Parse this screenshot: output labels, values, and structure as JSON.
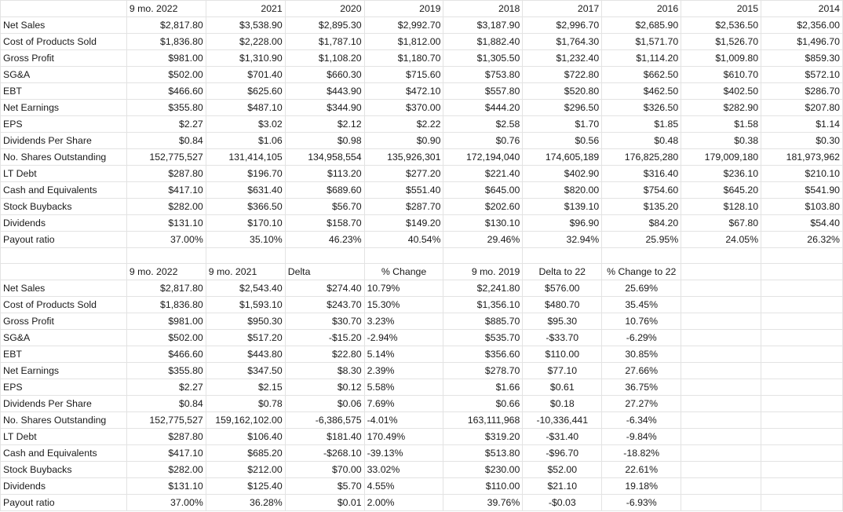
{
  "table1": {
    "headers": [
      "",
      "9 mo. 2022",
      "2021",
      "2020",
      "2019",
      "2018",
      "2017",
      "2016",
      "2015",
      "2014"
    ],
    "rows": [
      [
        "Net Sales",
        "$2,817.80",
        "$3,538.90",
        "$2,895.30",
        "$2,992.70",
        "$3,187.90",
        "$2,996.70",
        "$2,685.90",
        "$2,536.50",
        "$2,356.00"
      ],
      [
        "Cost of Products Sold",
        "$1,836.80",
        "$2,228.00",
        "$1,787.10",
        "$1,812.00",
        "$1,882.40",
        "$1,764.30",
        "$1,571.70",
        "$1,526.70",
        "$1,496.70"
      ],
      [
        "Gross Profit",
        "$981.00",
        "$1,310.90",
        "$1,108.20",
        "$1,180.70",
        "$1,305.50",
        "$1,232.40",
        "$1,114.20",
        "$1,009.80",
        "$859.30"
      ],
      [
        "SG&A",
        "$502.00",
        "$701.40",
        "$660.30",
        "$715.60",
        "$753.80",
        "$722.80",
        "$662.50",
        "$610.70",
        "$572.10"
      ],
      [
        "EBT",
        "$466.60",
        "$625.60",
        "$443.90",
        "$472.10",
        "$557.80",
        "$520.80",
        "$462.50",
        "$402.50",
        "$286.70"
      ],
      [
        "Net Earnings",
        "$355.80",
        "$487.10",
        "$344.90",
        "$370.00",
        "$444.20",
        "$296.50",
        "$326.50",
        "$282.90",
        "$207.80"
      ],
      [
        "EPS",
        "$2.27",
        "$3.02",
        "$2.12",
        "$2.22",
        "$2.58",
        "$1.70",
        "$1.85",
        "$1.58",
        "$1.14"
      ],
      [
        "Dividends Per Share",
        "$0.84",
        "$1.06",
        "$0.98",
        "$0.90",
        "$0.76",
        "$0.56",
        "$0.48",
        "$0.38",
        "$0.30"
      ],
      [
        "No. Shares Outstanding",
        "152,775,527",
        "131,414,105",
        "134,958,554",
        "135,926,301",
        "172,194,040",
        "174,605,189",
        "176,825,280",
        "179,009,180",
        "181,973,962"
      ],
      [
        "LT Debt",
        "$287.80",
        "$196.70",
        "$113.20",
        "$277.20",
        "$221.40",
        "$402.90",
        "$316.40",
        "$236.10",
        "$210.10"
      ],
      [
        "Cash and Equivalents",
        "$417.10",
        "$631.40",
        "$689.60",
        "$551.40",
        "$645.00",
        "$820.00",
        "$754.60",
        "$645.20",
        "$541.90"
      ],
      [
        "Stock Buybacks",
        "$282.00",
        "$366.50",
        "$56.70",
        "$287.70",
        "$202.60",
        "$139.10",
        "$135.20",
        "$128.10",
        "$103.80"
      ],
      [
        "Dividends",
        "$131.10",
        "$170.10",
        "$158.70",
        "$149.20",
        "$130.10",
        "$96.90",
        "$84.20",
        "$67.80",
        "$54.40"
      ],
      [
        "Payout ratio",
        "37.00%",
        "35.10%",
        "46.23%",
        "40.54%",
        "29.46%",
        "32.94%",
        "25.95%",
        "24.05%",
        "26.32%"
      ]
    ]
  },
  "table2": {
    "headers": [
      "",
      "9 mo. 2022",
      "9 mo. 2021",
      "Delta",
      "% Change",
      "9 mo. 2019",
      "Delta to 22",
      "% Change to 22",
      "",
      ""
    ],
    "rows": [
      [
        "Net Sales",
        "$2,817.80",
        "$2,543.40",
        "$274.40",
        "10.79%",
        "$2,241.80",
        "$576.00",
        "25.69%",
        "",
        ""
      ],
      [
        "Cost of Products Sold",
        "$1,836.80",
        "$1,593.10",
        "$243.70",
        "15.30%",
        "$1,356.10",
        "$480.70",
        "35.45%",
        "",
        ""
      ],
      [
        "Gross Profit",
        "$981.00",
        "$950.30",
        "$30.70",
        "3.23%",
        "$885.70",
        "$95.30",
        "10.76%",
        "",
        ""
      ],
      [
        "SG&A",
        "$502.00",
        "$517.20",
        "-$15.20",
        "-2.94%",
        "$535.70",
        "-$33.70",
        "-6.29%",
        "",
        ""
      ],
      [
        "EBT",
        "$466.60",
        "$443.80",
        "$22.80",
        "5.14%",
        "$356.60",
        "$110.00",
        "30.85%",
        "",
        ""
      ],
      [
        "Net Earnings",
        "$355.80",
        "$347.50",
        "$8.30",
        "2.39%",
        "$278.70",
        "$77.10",
        "27.66%",
        "",
        ""
      ],
      [
        "EPS",
        "$2.27",
        "$2.15",
        "$0.12",
        "5.58%",
        "$1.66",
        "$0.61",
        "36.75%",
        "",
        ""
      ],
      [
        "Dividends Per Share",
        "$0.84",
        "$0.78",
        "$0.06",
        "7.69%",
        "$0.66",
        "$0.18",
        "27.27%",
        "",
        ""
      ],
      [
        "No. Shares Outstanding",
        "152,775,527",
        "159,162,102.00",
        "-6,386,575",
        "-4.01%",
        "163,111,968",
        "-10,336,441",
        "-6.34%",
        "",
        ""
      ],
      [
        "LT Debt",
        "$287.80",
        "$106.40",
        "$181.40",
        "170.49%",
        "$319.20",
        "-$31.40",
        "-9.84%",
        "",
        ""
      ],
      [
        "Cash and Equivalents",
        "$417.10",
        "$685.20",
        "-$268.10",
        "-39.13%",
        "$513.80",
        "-$96.70",
        "-18.82%",
        "",
        ""
      ],
      [
        "Stock Buybacks",
        "$282.00",
        "$212.00",
        "$70.00",
        "33.02%",
        "$230.00",
        "$52.00",
        "22.61%",
        "",
        ""
      ],
      [
        "Dividends",
        "$131.10",
        "$125.40",
        "$5.70",
        "4.55%",
        "$110.00",
        "$21.10",
        "19.18%",
        "",
        ""
      ],
      [
        "Payout ratio",
        "37.00%",
        "36.28%",
        "$0.01",
        "2.00%",
        "39.76%",
        "-$0.03",
        "-6.93%",
        "",
        ""
      ]
    ]
  }
}
